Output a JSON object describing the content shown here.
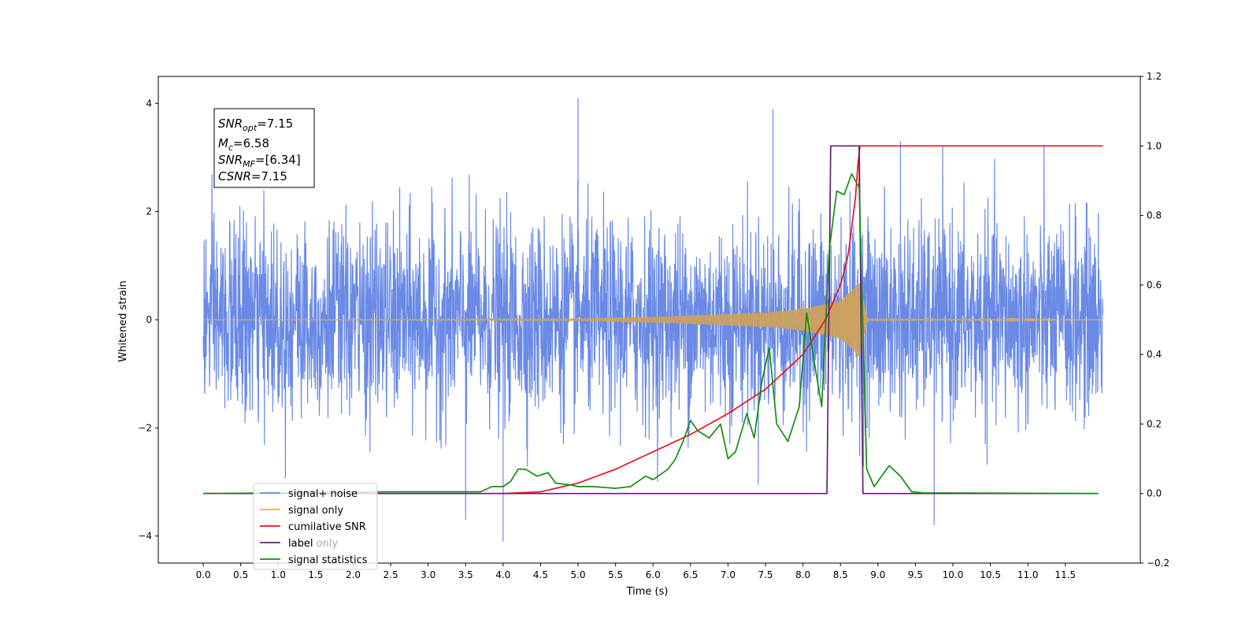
{
  "chart_data": {
    "type": "line",
    "xlabel": "Time (s)",
    "ylabel_left": "Whitened strain",
    "ylabel_right": "",
    "xlim": [
      -0.6,
      12.5
    ],
    "ylim_left": [
      -4.5,
      4.5
    ],
    "ylim_right": [
      -0.2,
      1.2
    ],
    "x_ticks": [
      0.0,
      0.5,
      1.0,
      1.5,
      2.0,
      2.5,
      3.0,
      3.5,
      4.0,
      4.5,
      5.0,
      5.5,
      6.0,
      6.5,
      7.0,
      7.5,
      8.0,
      8.5,
      9.0,
      9.5,
      10.0,
      10.5,
      11.0,
      11.5
    ],
    "x_tick_labels": [
      "0.0",
      "0.5",
      "1.0",
      "1.5",
      "2.0",
      "2.5",
      "3.0",
      "3.5",
      "4.0",
      "4.5",
      "5.0",
      "5.5",
      "6.0",
      "6.5",
      "7.0",
      "7.5",
      "8.0",
      "8.5",
      "9.0",
      "9.5",
      "10.0",
      "10.5",
      "11.0",
      "11.5"
    ],
    "y_ticks_left": [
      -4,
      -2,
      0,
      2,
      4
    ],
    "y_tick_labels_left": [
      "−4",
      "−2",
      "0",
      "2",
      "4"
    ],
    "y_ticks_right": [
      -0.2,
      0.0,
      0.2,
      0.4,
      0.6,
      0.8,
      1.0,
      1.2
    ],
    "y_tick_labels_right": [
      "−0.2",
      "0.0",
      "0.2",
      "0.4",
      "0.6",
      "0.8",
      "1.0",
      "1.2"
    ],
    "grid": false,
    "legend_placement": "lower-left",
    "annotation": {
      "snr_opt_base": "SNR",
      "snr_opt_sub": "opt",
      "snr_opt_value": "=7.15",
      "mc_base": "M",
      "mc_sub": "c",
      "mc_value": "=6.58",
      "snr_mf_base": "SNR",
      "snr_mf_sub": "MF",
      "snr_mf_value": "=[6.34]",
      "csnr_base": "CSNR",
      "csnr_value": "=7.15"
    },
    "series": [
      {
        "name": "signal+ noise",
        "axis": "left",
        "color": "#6a8ae6",
        "style": "noise",
        "x_range": [
          0.0,
          12.0
        ],
        "sigma": 0.9,
        "range_estimate": [
          -3.2,
          3.5
        ],
        "extremes": [
          [
            5.0,
            4.1
          ],
          [
            4.0,
            -4.1
          ],
          [
            3.5,
            -3.7
          ],
          [
            7.6,
            3.9
          ],
          [
            9.3,
            3.3
          ],
          [
            9.75,
            -3.8
          ]
        ]
      },
      {
        "name": "signal only",
        "axis": "left",
        "color": "#f5b041",
        "style": "chirp",
        "x_range": [
          0.0,
          12.0
        ],
        "merger_time": 8.75,
        "envelope": [
          [
            0.0,
            0.0
          ],
          [
            5.0,
            0.02
          ],
          [
            6.0,
            0.05
          ],
          [
            7.0,
            0.1
          ],
          [
            7.5,
            0.13
          ],
          [
            8.0,
            0.2
          ],
          [
            8.5,
            0.35
          ],
          [
            8.7,
            0.6
          ],
          [
            8.75,
            0.75
          ],
          [
            8.85,
            0.02
          ],
          [
            12.0,
            0.0
          ]
        ]
      },
      {
        "name": "cumilative SNR",
        "axis": "right",
        "color": "#e8141c",
        "points": [
          [
            0.0,
            0.0
          ],
          [
            4.0,
            0.0
          ],
          [
            4.5,
            0.005
          ],
          [
            5.0,
            0.03
          ],
          [
            5.5,
            0.07
          ],
          [
            6.0,
            0.12
          ],
          [
            6.5,
            0.17
          ],
          [
            7.0,
            0.23
          ],
          [
            7.5,
            0.3
          ],
          [
            8.0,
            0.4
          ],
          [
            8.3,
            0.5
          ],
          [
            8.5,
            0.6
          ],
          [
            8.6,
            0.68
          ],
          [
            8.7,
            0.85
          ],
          [
            8.75,
            1.0
          ],
          [
            12.0,
            1.0
          ]
        ]
      },
      {
        "name": "label",
        "axis": "right",
        "color": "#6a1a7a",
        "points": [
          [
            0.0,
            0.0
          ],
          [
            8.32,
            0.0
          ],
          [
            8.37,
            1.0
          ],
          [
            8.75,
            1.0
          ],
          [
            8.8,
            0.0
          ],
          [
            11.94,
            0.0
          ]
        ]
      },
      {
        "name": "signal statistics",
        "axis": "right",
        "color": "#138d13",
        "points": [
          [
            0.0,
            0.0
          ],
          [
            2.5,
            0.005
          ],
          [
            3.7,
            0.005
          ],
          [
            3.85,
            0.02
          ],
          [
            4.0,
            0.02
          ],
          [
            4.1,
            0.035
          ],
          [
            4.2,
            0.07
          ],
          [
            4.3,
            0.07
          ],
          [
            4.45,
            0.05
          ],
          [
            4.6,
            0.06
          ],
          [
            4.7,
            0.03
          ],
          [
            4.9,
            0.025
          ],
          [
            5.0,
            0.02
          ],
          [
            5.2,
            0.02
          ],
          [
            5.5,
            0.015
          ],
          [
            5.7,
            0.02
          ],
          [
            5.9,
            0.05
          ],
          [
            6.0,
            0.04
          ],
          [
            6.2,
            0.07
          ],
          [
            6.3,
            0.1
          ],
          [
            6.4,
            0.15
          ],
          [
            6.5,
            0.21
          ],
          [
            6.6,
            0.18
          ],
          [
            6.75,
            0.16
          ],
          [
            6.9,
            0.2
          ],
          [
            7.0,
            0.1
          ],
          [
            7.1,
            0.12
          ],
          [
            7.25,
            0.23
          ],
          [
            7.35,
            0.16
          ],
          [
            7.45,
            0.32
          ],
          [
            7.55,
            0.42
          ],
          [
            7.65,
            0.2
          ],
          [
            7.8,
            0.15
          ],
          [
            7.95,
            0.25
          ],
          [
            8.05,
            0.52
          ],
          [
            8.15,
            0.38
          ],
          [
            8.25,
            0.25
          ],
          [
            8.35,
            0.7
          ],
          [
            8.45,
            0.87
          ],
          [
            8.55,
            0.86
          ],
          [
            8.65,
            0.92
          ],
          [
            8.75,
            0.88
          ],
          [
            8.85,
            0.07
          ],
          [
            8.95,
            0.02
          ],
          [
            9.05,
            0.05
          ],
          [
            9.15,
            0.08
          ],
          [
            9.3,
            0.05
          ],
          [
            9.45,
            0.005
          ],
          [
            9.6,
            0.002
          ],
          [
            11.94,
            0.0
          ]
        ]
      }
    ]
  },
  "legend": [
    {
      "label": "signal+ noise",
      "color": "#6a8ae6"
    },
    {
      "label": "signal only",
      "color": "#f5b041"
    },
    {
      "label": "cumilative SNR",
      "color": "#e8141c"
    },
    {
      "label": "label only",
      "color": "#6a1a7a"
    },
    {
      "label": "signal statistics",
      "color": "#138d13"
    }
  ],
  "legend_overlay_text": "label"
}
